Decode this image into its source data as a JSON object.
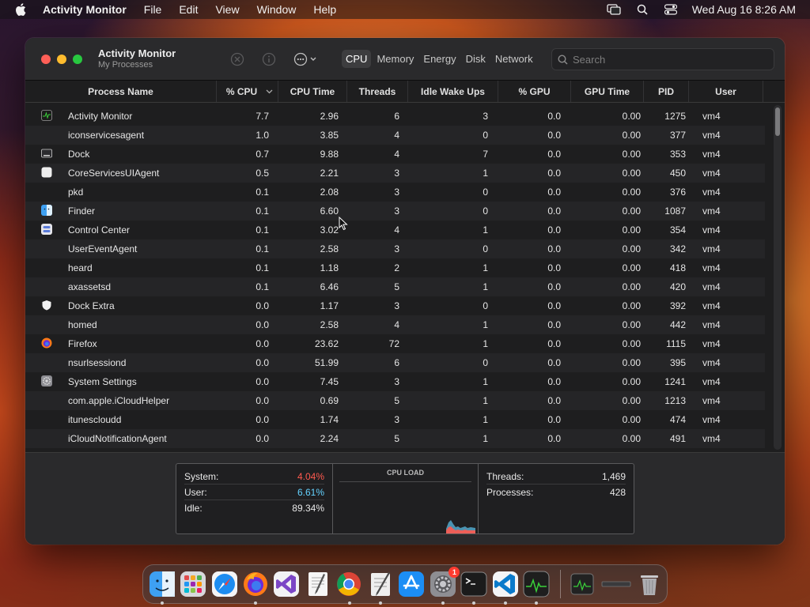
{
  "menubar": {
    "app_name": "Activity Monitor",
    "items": [
      "File",
      "Edit",
      "View",
      "Window",
      "Help"
    ],
    "clock": "Wed Aug 16  8:26 AM"
  },
  "window": {
    "title": "Activity Monitor",
    "subtitle": "My Processes",
    "tabs": [
      "CPU",
      "Memory",
      "Energy",
      "Disk",
      "Network"
    ],
    "active_tab": "CPU",
    "search_placeholder": "Search"
  },
  "table": {
    "columns": [
      "Process Name",
      "% CPU",
      "CPU Time",
      "Threads",
      "Idle Wake Ups",
      "% GPU",
      "GPU Time",
      "PID",
      "User"
    ],
    "sorted_column": "% CPU",
    "rows": [
      {
        "icon": "activity-monitor-icon",
        "name": "Activity Monitor",
        "cpu": "7.7",
        "cpu_time": "2.96",
        "threads": "6",
        "idle": "3",
        "gpu": "0.0",
        "gpu_time": "0.00",
        "pid": "1275",
        "user": "vm4"
      },
      {
        "icon": "",
        "name": "iconservicesagent",
        "cpu": "1.0",
        "cpu_time": "3.85",
        "threads": "4",
        "idle": "0",
        "gpu": "0.0",
        "gpu_time": "0.00",
        "pid": "377",
        "user": "vm4"
      },
      {
        "icon": "dock-icon",
        "name": "Dock",
        "cpu": "0.7",
        "cpu_time": "9.88",
        "threads": "4",
        "idle": "7",
        "gpu": "0.0",
        "gpu_time": "0.00",
        "pid": "353",
        "user": "vm4"
      },
      {
        "icon": "generic-app-icon",
        "name": "CoreServicesUIAgent",
        "cpu": "0.5",
        "cpu_time": "2.21",
        "threads": "3",
        "idle": "1",
        "gpu": "0.0",
        "gpu_time": "0.00",
        "pid": "450",
        "user": "vm4"
      },
      {
        "icon": "",
        "name": "pkd",
        "cpu": "0.1",
        "cpu_time": "2.08",
        "threads": "3",
        "idle": "0",
        "gpu": "0.0",
        "gpu_time": "0.00",
        "pid": "376",
        "user": "vm4"
      },
      {
        "icon": "finder-icon",
        "name": "Finder",
        "cpu": "0.1",
        "cpu_time": "6.60",
        "threads": "3",
        "idle": "0",
        "gpu": "0.0",
        "gpu_time": "0.00",
        "pid": "1087",
        "user": "vm4"
      },
      {
        "icon": "control-center-icon",
        "name": "Control Center",
        "cpu": "0.1",
        "cpu_time": "3.02",
        "threads": "4",
        "idle": "1",
        "gpu": "0.0",
        "gpu_time": "0.00",
        "pid": "354",
        "user": "vm4"
      },
      {
        "icon": "",
        "name": "UserEventAgent",
        "cpu": "0.1",
        "cpu_time": "2.58",
        "threads": "3",
        "idle": "0",
        "gpu": "0.0",
        "gpu_time": "0.00",
        "pid": "342",
        "user": "vm4"
      },
      {
        "icon": "",
        "name": "heard",
        "cpu": "0.1",
        "cpu_time": "1.18",
        "threads": "2",
        "idle": "1",
        "gpu": "0.0",
        "gpu_time": "0.00",
        "pid": "418",
        "user": "vm4"
      },
      {
        "icon": "",
        "name": "axassetsd",
        "cpu": "0.1",
        "cpu_time": "6.46",
        "threads": "5",
        "idle": "1",
        "gpu": "0.0",
        "gpu_time": "0.00",
        "pid": "420",
        "user": "vm4"
      },
      {
        "icon": "shield-icon",
        "name": "Dock Extra",
        "cpu": "0.0",
        "cpu_time": "1.17",
        "threads": "3",
        "idle": "0",
        "gpu": "0.0",
        "gpu_time": "0.00",
        "pid": "392",
        "user": "vm4"
      },
      {
        "icon": "",
        "name": "homed",
        "cpu": "0.0",
        "cpu_time": "2.58",
        "threads": "4",
        "idle": "1",
        "gpu": "0.0",
        "gpu_time": "0.00",
        "pid": "442",
        "user": "vm4"
      },
      {
        "icon": "firefox-icon",
        "name": "Firefox",
        "cpu": "0.0",
        "cpu_time": "23.62",
        "threads": "72",
        "idle": "1",
        "gpu": "0.0",
        "gpu_time": "0.00",
        "pid": "1115",
        "user": "vm4"
      },
      {
        "icon": "",
        "name": "nsurlsessiond",
        "cpu": "0.0",
        "cpu_time": "51.99",
        "threads": "6",
        "idle": "0",
        "gpu": "0.0",
        "gpu_time": "0.00",
        "pid": "395",
        "user": "vm4"
      },
      {
        "icon": "settings-icon",
        "name": "System Settings",
        "cpu": "0.0",
        "cpu_time": "7.45",
        "threads": "3",
        "idle": "1",
        "gpu": "0.0",
        "gpu_time": "0.00",
        "pid": "1241",
        "user": "vm4"
      },
      {
        "icon": "",
        "name": "com.apple.iCloudHelper",
        "cpu": "0.0",
        "cpu_time": "0.69",
        "threads": "5",
        "idle": "1",
        "gpu": "0.0",
        "gpu_time": "0.00",
        "pid": "1213",
        "user": "vm4"
      },
      {
        "icon": "",
        "name": "itunescloudd",
        "cpu": "0.0",
        "cpu_time": "1.74",
        "threads": "3",
        "idle": "1",
        "gpu": "0.0",
        "gpu_time": "0.00",
        "pid": "474",
        "user": "vm4"
      },
      {
        "icon": "",
        "name": "iCloudNotificationAgent",
        "cpu": "0.0",
        "cpu_time": "2.24",
        "threads": "5",
        "idle": "1",
        "gpu": "0.0",
        "gpu_time": "0.00",
        "pid": "491",
        "user": "vm4"
      }
    ]
  },
  "stats": {
    "system_label": "System:",
    "system_value": "4.04%",
    "user_label": "User:",
    "user_value": "6.61%",
    "idle_label": "Idle:",
    "idle_value": "89.34%",
    "cpu_load_title": "CPU LOAD",
    "threads_label": "Threads:",
    "threads_value": "1,469",
    "processes_label": "Processes:",
    "processes_value": "428"
  },
  "colors": {
    "system": "#ff5a4f",
    "user": "#64d2ff",
    "accent_red": "#fe5f57",
    "accent_yellow": "#febc2e",
    "accent_green": "#28c840"
  },
  "dock": {
    "apps": [
      "finder-icon",
      "launchpad-icon",
      "safari-icon",
      "firefox-icon",
      "visual-studio-icon",
      "textedit-icon",
      "chrome-icon",
      "script-editor-icon",
      "app-store-icon",
      "system-settings-icon",
      "terminal-icon",
      "vscode-icon",
      "activity-monitor-icon",
      "activity-monitor-minimized-icon",
      "minimized-window-icon",
      "trash-icon"
    ],
    "settings_badge": "1"
  }
}
